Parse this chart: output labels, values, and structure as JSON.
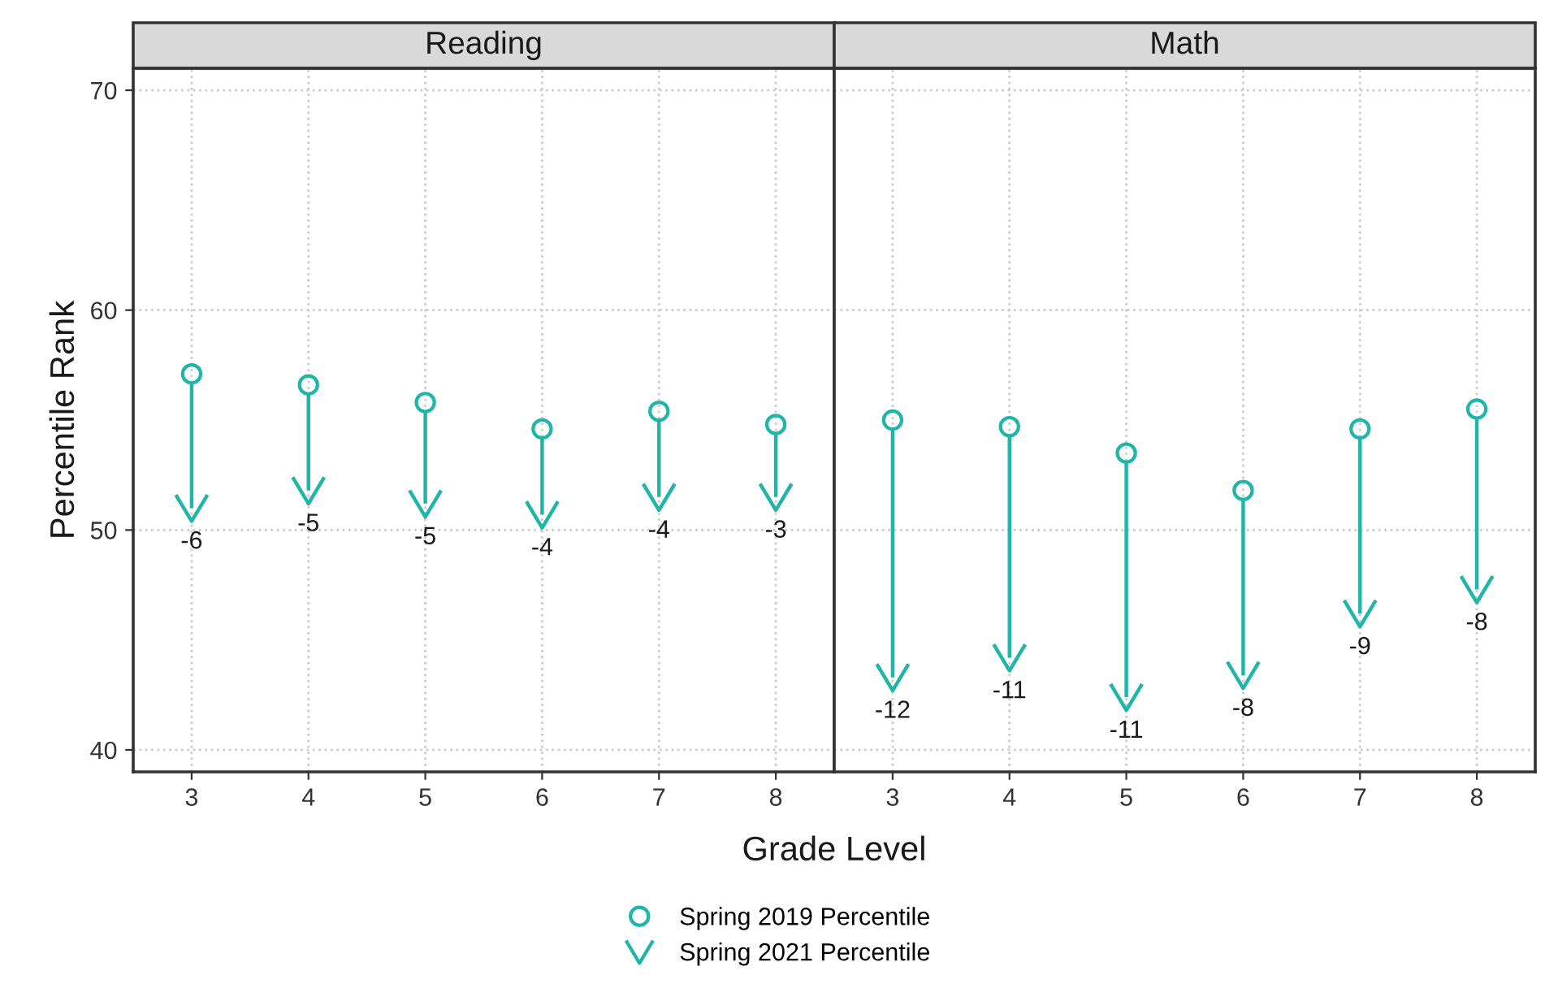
{
  "chart_data": [
    {
      "type": "scatter",
      "title": "Reading",
      "ylabel": "Percentile Rank",
      "xlabel": "Grade Level",
      "categories": [
        "3",
        "4",
        "5",
        "6",
        "7",
        "8"
      ],
      "ylim": [
        39,
        71
      ],
      "yticks": [
        40,
        50,
        60,
        70
      ],
      "grid": true,
      "legend": "bottom",
      "series": [
        {
          "name": "Spring 2019 Percentile",
          "color": "#1fb5a8",
          "marker": "circle",
          "values": [
            57.1,
            56.6,
            55.8,
            54.6,
            55.4,
            54.8
          ]
        },
        {
          "name": "Spring 2021 Percentile",
          "color": "#1fb5a8",
          "values": [
            51.0,
            51.8,
            51.2,
            50.7,
            51.5,
            51.5
          ]
        }
      ],
      "annotations": [
        {
          "text": "-6",
          "x": "3",
          "y": 51.0
        },
        {
          "text": "-5",
          "x": "4",
          "y": 51.8
        },
        {
          "text": "-5",
          "x": "5",
          "y": 51.2
        },
        {
          "text": "-4",
          "x": "6",
          "y": 50.7
        },
        {
          "text": "-4",
          "x": "7",
          "y": 51.5
        },
        {
          "text": "-3",
          "x": "8",
          "y": 51.5
        }
      ]
    },
    {
      "type": "scatter",
      "title": "Math",
      "categories": [
        "3",
        "4",
        "5",
        "6",
        "7",
        "8"
      ],
      "ylim": [
        39,
        71
      ],
      "yticks": [
        40,
        50,
        60,
        70
      ],
      "grid": true,
      "tick_labels": "x",
      "series": [
        {
          "color": "#1fb5a8",
          "marker": "circle",
          "values": [
            55.0,
            54.7,
            53.5,
            51.8,
            54.6,
            55.5
          ]
        },
        {
          "color": "#1fb5a8",
          "values": [
            43.3,
            44.2,
            42.4,
            43.4,
            46.2,
            47.3
          ]
        }
      ],
      "annotations": [
        {
          "text": "-12",
          "x": "3",
          "y": 43.3
        },
        {
          "text": "-11",
          "x": "4",
          "y": 44.2
        },
        {
          "text": "-11",
          "x": "5",
          "y": 42.4
        },
        {
          "text": "-8",
          "x": "6",
          "y": 43.4
        },
        {
          "text": "-9",
          "x": "7",
          "y": 46.2
        },
        {
          "text": "-8",
          "x": "8",
          "y": 47.3
        }
      ]
    }
  ]
}
